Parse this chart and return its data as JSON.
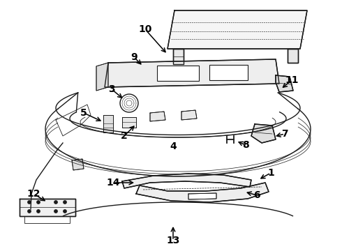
{
  "background_color": "#ffffff",
  "line_color": "#1a1a1a",
  "label_color": "#000000",
  "label_fontsize": 10,
  "label_fontweight": "bold",
  "figsize": [
    4.9,
    3.6
  ],
  "dpi": 100
}
